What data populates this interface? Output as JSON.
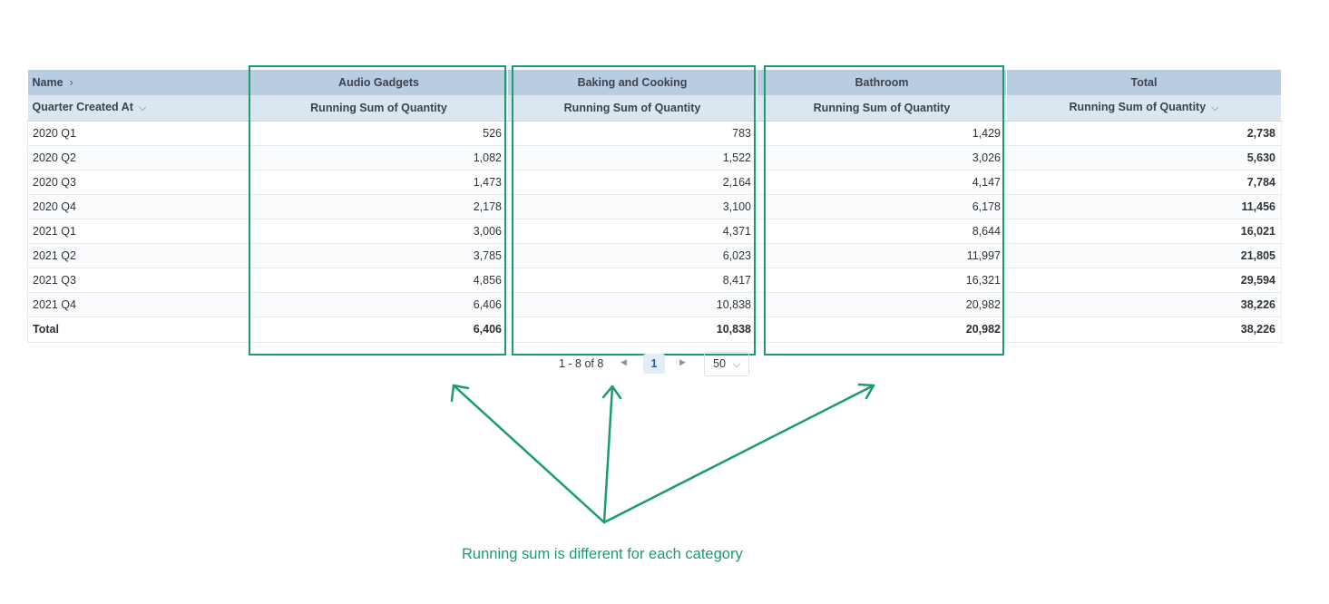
{
  "table": {
    "row_header": "Name",
    "row_header_icon": "chevron-right-icon",
    "sub_row_header": "Quarter Created At",
    "sub_row_header_icon": "chevron-down-icon",
    "columns": [
      {
        "name": "Audio Gadgets",
        "measure": "Running Sum of Quantity"
      },
      {
        "name": "Baking and Cooking",
        "measure": "Running Sum of Quantity"
      },
      {
        "name": "Bathroom",
        "measure": "Running Sum of Quantity"
      },
      {
        "name": "Total",
        "measure": "Running Sum of Quantity"
      }
    ],
    "rows": [
      {
        "label": "2020 Q1",
        "values": [
          "526",
          "783",
          "1,429",
          "2,738"
        ]
      },
      {
        "label": "2020 Q2",
        "values": [
          "1,082",
          "1,522",
          "3,026",
          "5,630"
        ]
      },
      {
        "label": "2020 Q3",
        "values": [
          "1,473",
          "2,164",
          "4,147",
          "7,784"
        ]
      },
      {
        "label": "2020 Q4",
        "values": [
          "2,178",
          "3,100",
          "6,178",
          "11,456"
        ]
      },
      {
        "label": "2021 Q1",
        "values": [
          "3,006",
          "4,371",
          "8,644",
          "16,021"
        ]
      },
      {
        "label": "2021 Q2",
        "values": [
          "3,785",
          "6,023",
          "11,997",
          "21,805"
        ]
      },
      {
        "label": "2021 Q3",
        "values": [
          "4,856",
          "8,417",
          "16,321",
          "29,594"
        ]
      },
      {
        "label": "2021 Q4",
        "values": [
          "6,406",
          "10,838",
          "20,982",
          "38,226"
        ]
      }
    ],
    "total_row": {
      "label": "Total",
      "values": [
        "6,406",
        "10,838",
        "20,982",
        "38,226"
      ]
    }
  },
  "pagination": {
    "range_text": "1 - 8 of 8",
    "current_page": "1",
    "page_size": "50"
  },
  "annotation": {
    "text": "Running sum is different for each category",
    "color": "#1a9d6c"
  },
  "colors": {
    "header_primary": "#b9cde2",
    "header_secondary": "#dbe6f1",
    "highlight": "#1a9d6c",
    "active_page": "#1f5fa8"
  }
}
